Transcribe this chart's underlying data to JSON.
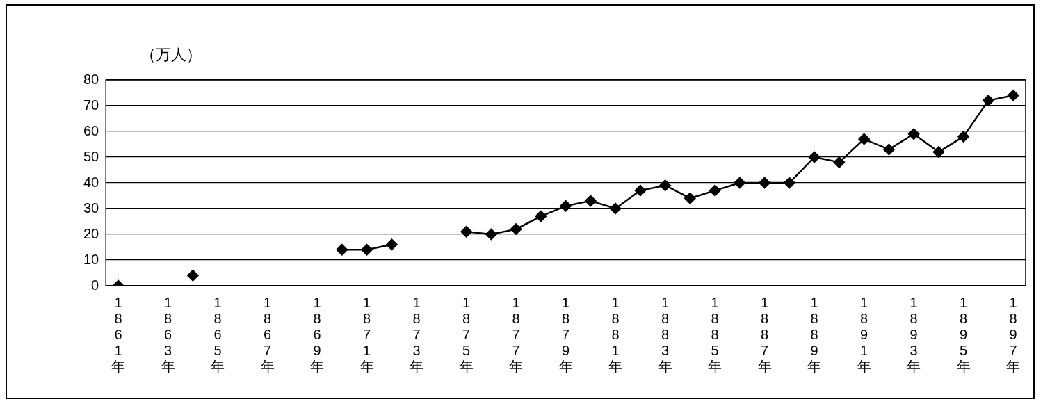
{
  "chart_data": {
    "type": "line",
    "ylabel": "（万人）",
    "categories": [
      "1861年",
      null,
      "1863年",
      null,
      "1865年",
      null,
      "1867年",
      null,
      "1869年",
      null,
      "1871年",
      null,
      "1873年",
      null,
      "1875年",
      null,
      "1877年",
      null,
      "1879年",
      null,
      "1881年",
      null,
      "1883年",
      null,
      "1885年",
      null,
      "1887年",
      null,
      "1889年",
      null,
      "1891年",
      null,
      "1893年",
      null,
      "1895年",
      null,
      "1897年"
    ],
    "series": [
      {
        "color": "#000000",
        "values": [
          0,
          null,
          null,
          4,
          null,
          null,
          null,
          null,
          null,
          14,
          14,
          16,
          null,
          null,
          21,
          20,
          22,
          27,
          31,
          33,
          30,
          37,
          39,
          34,
          37,
          40,
          40,
          40,
          50,
          48,
          57,
          53,
          59,
          52,
          58,
          72,
          74
        ]
      }
    ],
    "ylim": [
      0,
      80
    ],
    "yticks": [
      0,
      10,
      20,
      30,
      40,
      50,
      60,
      70,
      80
    ],
    "grid": "y",
    "legend": false,
    "marker": "diamond",
    "line_style": "solid"
  }
}
